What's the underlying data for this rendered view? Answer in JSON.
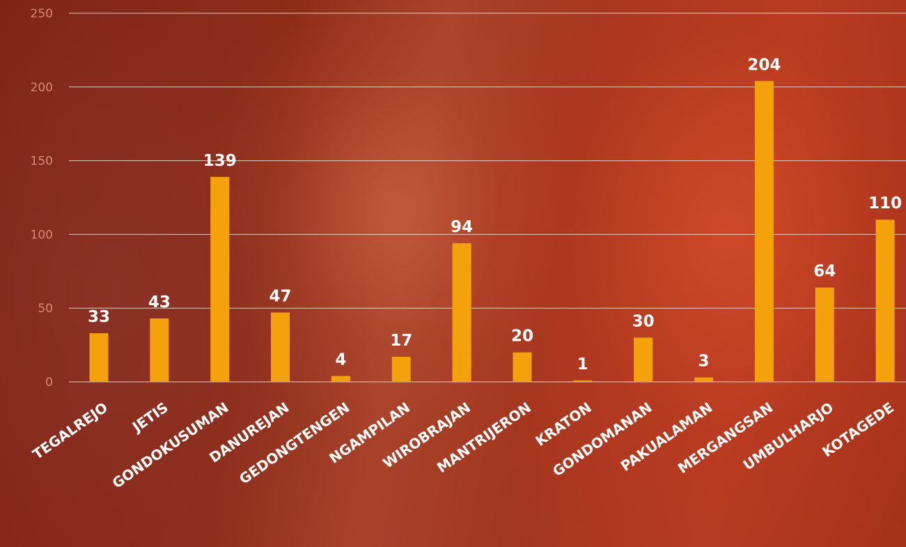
{
  "chart_data": {
    "type": "bar",
    "title": "",
    "xlabel": "",
    "ylabel": "",
    "ylim": [
      0,
      250
    ],
    "yticks": [
      0,
      50,
      100,
      150,
      200,
      250
    ],
    "grid": true,
    "legend": "none",
    "bar_color": "#f4a10c",
    "label_color": "#ffffff",
    "categories": [
      "TEGALREJO",
      "JETIS",
      "GONDOKUSUMAN",
      "DANUREJAN",
      "GEDONGTENGEN",
      "NGAMPILAN",
      "WIROBRAJAN",
      "MANTRIJERON",
      "KRATON",
      "GONDOMANAN",
      "PAKUALAMAN",
      "MERGANGSAN",
      "UMBULHARJO",
      "KOTAGEDE"
    ],
    "values": [
      33,
      43,
      139,
      47,
      4,
      17,
      94,
      20,
      1,
      30,
      3,
      204,
      64,
      110
    ]
  }
}
